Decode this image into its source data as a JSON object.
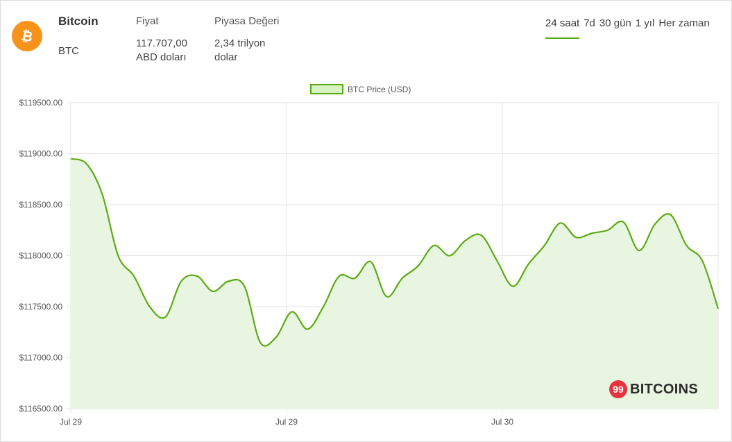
{
  "coin": {
    "name": "Bitcoin",
    "symbol": "BTC",
    "price_label": "Fiyat",
    "price_value_line1": "117.707,00",
    "price_value_line2": "ABD doları",
    "mcap_label": "Piyasa Değeri",
    "mcap_value_line1": "2,34 trilyon",
    "mcap_value_line2": "dolar",
    "icon": "bitcoin-icon",
    "brand_color": "#f7931a"
  },
  "ranges": [
    {
      "label": "24 saat",
      "active": true
    },
    {
      "label": "7d",
      "active": false
    },
    {
      "label": "30 gün",
      "active": false
    },
    {
      "label": "1 yıl",
      "active": false
    },
    {
      "label": "Her zaman",
      "active": false
    }
  ],
  "accent_color": "#5aab12",
  "watermark": {
    "badge": "99",
    "text": "BITCOINS"
  },
  "chart_data": {
    "type": "area",
    "series": [
      {
        "name": "BTC Price (USD)",
        "color": "#5aab12",
        "fill": "#e8f5e0",
        "values": [
          118950,
          118900,
          118600,
          118000,
          117800,
          117500,
          117400,
          117750,
          117800,
          117650,
          117750,
          117700,
          117150,
          117200,
          117450,
          117280,
          117500,
          117800,
          117780,
          117940,
          117600,
          117780,
          117900,
          118100,
          118000,
          118150,
          118200,
          117950,
          117700,
          117920,
          118100,
          118320,
          118180,
          118220,
          118250,
          118330,
          118050,
          118310,
          118400,
          118100,
          117950,
          117480
        ]
      }
    ],
    "x_ticks": [
      "Jul 29",
      "Jul 29",
      "Jul 30"
    ],
    "y_ticks": [
      "$116500.00",
      "$117000.00",
      "$117500.00",
      "$118000.00",
      "$118500.00",
      "$119000.00",
      "$119500.00"
    ],
    "ylim": [
      116500,
      119500
    ],
    "grid": true,
    "legend": "top-center"
  }
}
